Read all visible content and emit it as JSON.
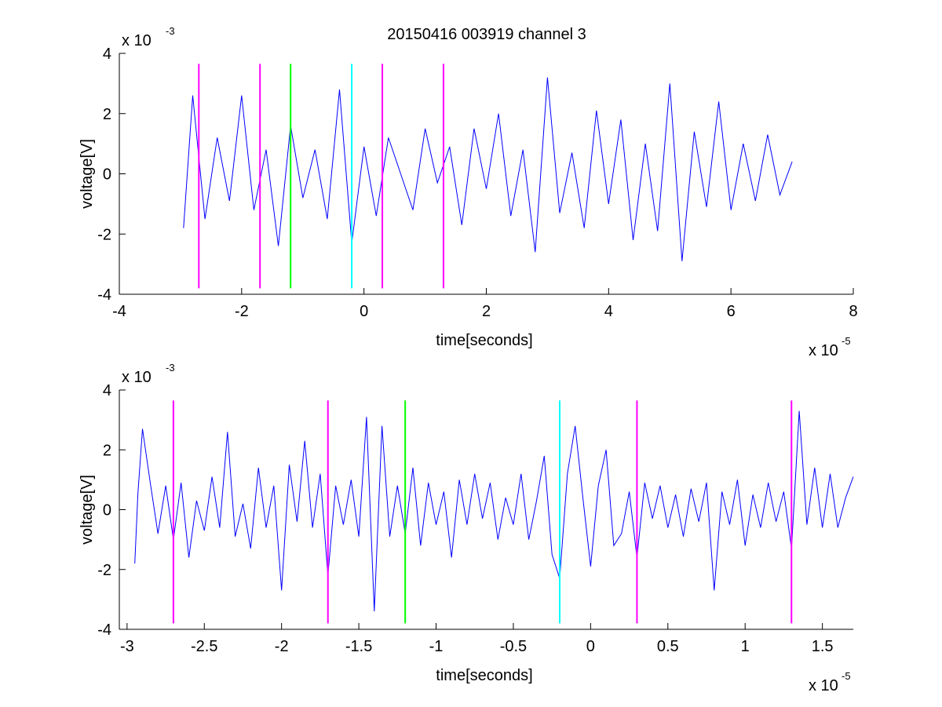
{
  "figure": {
    "title": "20150416 003919 channel 3"
  },
  "colors": {
    "signal": "#0000ff",
    "marker_magenta": "#ff00ff",
    "marker_green": "#00ff00",
    "marker_cyan": "#00ffff",
    "axes": "#000000"
  },
  "chart_data": [
    {
      "type": "line",
      "title": "20150416 003919 channel 3",
      "xlabel": "time[seconds]",
      "ylabel": "voltage[V]",
      "x_exponent": "x 10",
      "x_exponent_power": "-5",
      "y_exponent": "x 10",
      "y_exponent_power": "-3",
      "xlim": [
        -4,
        8
      ],
      "ylim": [
        -4,
        4
      ],
      "x_ticks": [
        -4,
        -2,
        0,
        2,
        4,
        6,
        8
      ],
      "y_ticks": [
        -4,
        -2,
        0,
        2,
        4
      ],
      "x_tick_labels": [
        "-4",
        "-2",
        "0",
        "2",
        "4",
        "6",
        "8"
      ],
      "y_tick_labels": [
        "-4",
        "-2",
        "0",
        "2",
        "4"
      ],
      "grid": false,
      "series": [
        {
          "style": "noisy-waveform",
          "x": [
            -2.95,
            -2.8,
            -2.6,
            -2.4,
            -2.2,
            -2.0,
            -1.8,
            -1.6,
            -1.4,
            -1.2,
            -1.0,
            -0.8,
            -0.6,
            -0.4,
            -0.2,
            0.0,
            0.2,
            0.4,
            0.6,
            0.8,
            1.0,
            1.2,
            1.4,
            1.6,
            1.8,
            2.0,
            2.2,
            2.4,
            2.6,
            2.8,
            3.0,
            3.2,
            3.4,
            3.6,
            3.8,
            4.0,
            4.2,
            4.4,
            4.6,
            4.8,
            5.0,
            5.2,
            5.4,
            5.6,
            5.8,
            6.0,
            6.2,
            6.4,
            6.6,
            6.8,
            7.0
          ],
          "y": [
            -1.8,
            2.6,
            -1.5,
            1.2,
            -0.9,
            2.6,
            -1.2,
            0.8,
            -2.4,
            1.6,
            -0.8,
            0.8,
            -1.5,
            2.8,
            -2.3,
            0.9,
            -1.4,
            1.2,
            0.0,
            -1.2,
            1.5,
            -0.3,
            0.9,
            -1.7,
            1.5,
            -0.5,
            2.0,
            -1.4,
            0.8,
            -2.6,
            3.2,
            -1.3,
            0.7,
            -1.8,
            2.1,
            -1.0,
            1.8,
            -2.2,
            1.0,
            -1.9,
            3.0,
            -2.9,
            1.4,
            -1.1,
            2.4,
            -1.2,
            1.0,
            -0.9,
            1.3,
            -0.7,
            0.4
          ]
        }
      ],
      "markers": [
        {
          "x": -2.7,
          "color": "magenta"
        },
        {
          "x": -1.7,
          "color": "magenta"
        },
        {
          "x": -1.2,
          "color": "green"
        },
        {
          "x": -0.2,
          "color": "cyan"
        },
        {
          "x": 0.3,
          "color": "magenta"
        },
        {
          "x": 1.3,
          "color": "magenta"
        }
      ]
    },
    {
      "type": "line",
      "title": "",
      "xlabel": "time[seconds]",
      "ylabel": "voltage[V]",
      "x_exponent": "x 10",
      "x_exponent_power": "-5",
      "y_exponent": "x 10",
      "y_exponent_power": "-3",
      "xlim": [
        -3.05,
        1.7
      ],
      "ylim": [
        -4,
        4
      ],
      "x_ticks": [
        -3,
        -2.5,
        -2,
        -1.5,
        -1,
        -0.5,
        0,
        0.5,
        1,
        1.5
      ],
      "y_ticks": [
        -4,
        -2,
        0,
        2,
        4
      ],
      "x_tick_labels": [
        "-3",
        "-2.5",
        "-2",
        "-1.5",
        "-1",
        "-0.5",
        "0",
        "0.5",
        "1",
        "1.5"
      ],
      "y_tick_labels": [
        "-4",
        "-2",
        "0",
        "2",
        "4"
      ],
      "grid": false,
      "series": [
        {
          "style": "noisy-waveform",
          "x": [
            -2.95,
            -2.93,
            -2.9,
            -2.85,
            -2.8,
            -2.75,
            -2.7,
            -2.65,
            -2.6,
            -2.55,
            -2.5,
            -2.45,
            -2.4,
            -2.35,
            -2.3,
            -2.25,
            -2.2,
            -2.15,
            -2.1,
            -2.05,
            -2.0,
            -1.95,
            -1.9,
            -1.85,
            -1.8,
            -1.75,
            -1.7,
            -1.65,
            -1.6,
            -1.55,
            -1.5,
            -1.45,
            -1.4,
            -1.35,
            -1.3,
            -1.25,
            -1.2,
            -1.15,
            -1.1,
            -1.05,
            -1.0,
            -0.95,
            -0.9,
            -0.85,
            -0.8,
            -0.75,
            -0.7,
            -0.65,
            -0.6,
            -0.55,
            -0.5,
            -0.45,
            -0.4,
            -0.35,
            -0.3,
            -0.25,
            -0.2,
            -0.15,
            -0.1,
            -0.05,
            0.0,
            0.05,
            0.1,
            0.15,
            0.2,
            0.25,
            0.3,
            0.35,
            0.4,
            0.45,
            0.5,
            0.55,
            0.6,
            0.65,
            0.7,
            0.75,
            0.8,
            0.85,
            0.9,
            0.95,
            1.0,
            1.05,
            1.1,
            1.15,
            1.2,
            1.25,
            1.3,
            1.35,
            1.4,
            1.45,
            1.5,
            1.55,
            1.6,
            1.65,
            1.7
          ],
          "y": [
            -1.8,
            0.5,
            2.7,
            0.9,
            -0.8,
            0.8,
            -1.0,
            0.9,
            -1.6,
            0.3,
            -0.7,
            1.1,
            -0.6,
            2.6,
            -0.9,
            0.2,
            -1.3,
            1.4,
            -0.6,
            0.8,
            -2.7,
            1.5,
            -0.4,
            2.3,
            -0.6,
            1.2,
            -2.2,
            0.8,
            -0.5,
            1.0,
            -0.9,
            3.1,
            -3.4,
            2.8,
            -0.9,
            0.8,
            -0.8,
            1.4,
            -1.2,
            0.9,
            -0.5,
            0.6,
            -1.6,
            1.0,
            -0.5,
            1.2,
            -0.3,
            0.9,
            -1.0,
            0.4,
            -0.5,
            1.2,
            -1.0,
            0.3,
            1.8,
            -1.5,
            -2.3,
            1.2,
            2.8,
            0.4,
            -1.9,
            0.8,
            2.0,
            -1.2,
            -0.8,
            0.6,
            -1.6,
            0.9,
            -0.3,
            0.8,
            -0.6,
            0.5,
            -0.9,
            0.7,
            -0.4,
            0.9,
            -2.7,
            0.6,
            -0.5,
            1.0,
            -1.2,
            0.5,
            -0.6,
            0.9,
            -0.4,
            0.6,
            -1.3,
            3.3,
            -0.5,
            1.4,
            -0.6,
            1.2,
            -0.6,
            0.4,
            1.1
          ]
        }
      ],
      "markers": [
        {
          "x": -2.7,
          "color": "magenta"
        },
        {
          "x": -1.7,
          "color": "magenta"
        },
        {
          "x": -1.2,
          "color": "green"
        },
        {
          "x": -0.2,
          "color": "cyan"
        },
        {
          "x": 0.3,
          "color": "magenta"
        },
        {
          "x": 1.3,
          "color": "magenta"
        }
      ]
    }
  ]
}
